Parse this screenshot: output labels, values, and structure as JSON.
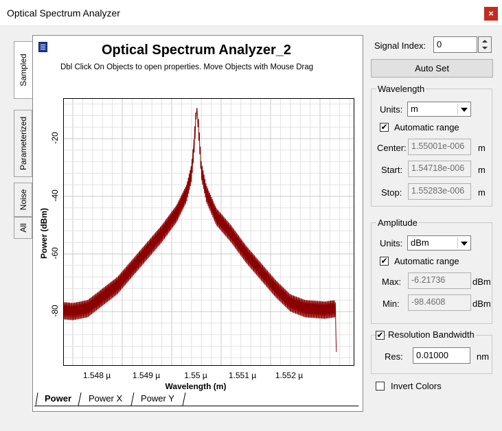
{
  "window": {
    "title": "Optical Spectrum Analyzer",
    "close_glyph": "×"
  },
  "side_tabs": [
    "Sampled",
    "Parameterized",
    "Noise",
    "All"
  ],
  "plot": {
    "title": "Optical Spectrum Analyzer_2",
    "subtitle": "Dbl Click On Objects to open properties.  Move Objects with Mouse Drag",
    "ylabel": "Power (dBm)",
    "xlabel": "Wavelength (m)",
    "yticks": [
      "-20",
      "-40",
      "-60",
      "-80"
    ],
    "xticks": [
      "1.548 µ",
      "1.549 µ",
      "1.55 µ",
      "1.551 µ",
      "1.552 µ"
    ],
    "bottom_tabs": [
      "Power",
      "Power X",
      "Power Y"
    ]
  },
  "chart_data": {
    "type": "line",
    "title": "Optical Spectrum Analyzer_2",
    "xlabel": "Wavelength (m)",
    "ylabel": "Power (dBm)",
    "x_unit": "µm",
    "xlim": [
      1.54718,
      1.55283
    ],
    "ylim": [
      -98.4608,
      -6.21736
    ],
    "grid": true,
    "series": [
      {
        "color": "#8b0000",
        "points": [
          [
            1.54718,
            -90
          ],
          [
            1.5472,
            -80.5
          ],
          [
            1.5475,
            -81
          ],
          [
            1.5478,
            -80
          ],
          [
            1.5481,
            -76
          ],
          [
            1.5484,
            -72
          ],
          [
            1.5487,
            -66
          ],
          [
            1.549,
            -60
          ],
          [
            1.5493,
            -54
          ],
          [
            1.5496,
            -47
          ],
          [
            1.5498,
            -40
          ],
          [
            1.5499,
            -33
          ],
          [
            1.54995,
            -24
          ],
          [
            1.55001,
            -9
          ],
          [
            1.55007,
            -24
          ],
          [
            1.5501,
            -32
          ],
          [
            1.5502,
            -40
          ],
          [
            1.5504,
            -48
          ],
          [
            1.5507,
            -54
          ],
          [
            1.551,
            -61
          ],
          [
            1.5513,
            -67
          ],
          [
            1.5516,
            -73
          ],
          [
            1.5519,
            -78
          ],
          [
            1.5522,
            -80
          ],
          [
            1.5526,
            -80.5
          ],
          [
            1.55281,
            -80
          ],
          [
            1.55283,
            -94
          ]
        ]
      }
    ]
  },
  "right_panel": {
    "signal_index_label": "Signal Index:",
    "signal_index_value": "0",
    "auto_set_label": "Auto Set",
    "wavelength": {
      "title": "Wavelength",
      "units_label": "Units:",
      "units_value": "m",
      "auto_range_label": "Automatic range",
      "auto_range_checked": "✔",
      "center_label": "Center:",
      "center_value": "1.55001e-006",
      "start_label": "Start:",
      "start_value": "1.54718e-006",
      "stop_label": "Stop:",
      "stop_value": "1.55283e-006",
      "unit": "m"
    },
    "amplitude": {
      "title": "Amplitude",
      "units_label": "Units:",
      "units_value": "dBm",
      "auto_range_label": "Automatic range",
      "auto_range_checked": "✔",
      "max_label": "Max:",
      "max_value": "-6.21736",
      "min_label": "Min:",
      "min_value": "-98.4608",
      "unit": "dBm"
    },
    "resolution": {
      "title": "Resolution Bandwidth",
      "checked": "✔",
      "res_label": "Res:",
      "res_value": "0.01000",
      "unit": "nm"
    },
    "invert_colors_label": "Invert Colors"
  },
  "icons": [
    "close-icon",
    "graph-icon",
    "checkbox-icon",
    "dropdown-arrow-icon",
    "spin-up-icon",
    "spin-down-icon"
  ]
}
